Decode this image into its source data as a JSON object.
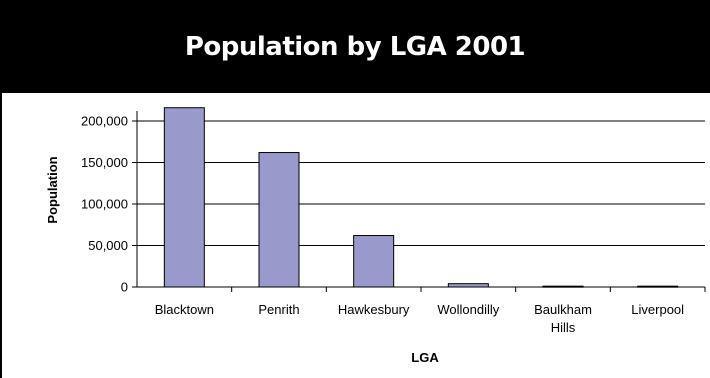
{
  "chart_data": {
    "type": "bar",
    "title": "Population by LGA 2001",
    "xlabel": "LGA",
    "ylabel": "Population",
    "categories": [
      [
        "Blacktown"
      ],
      [
        "Penrith"
      ],
      [
        "Hawkesbury"
      ],
      [
        "Wollondilly"
      ],
      [
        "Baulkham",
        "Hills"
      ],
      [
        "Liverpool"
      ]
    ],
    "values": [
      216000,
      162000,
      62000,
      4000,
      1000,
      1000
    ],
    "ylim": [
      0,
      200000
    ],
    "yticks": [
      0,
      50000,
      100000,
      150000,
      200000
    ],
    "ytick_labels": [
      "0",
      "50,000",
      "100,000",
      "150,000",
      "200,000"
    ],
    "grid": true,
    "legend": "none",
    "colors": {
      "bar_fill": "#9999cc",
      "bar_stroke": "#000000",
      "title_bg": "#000000",
      "title_text": "#ffffff"
    }
  }
}
